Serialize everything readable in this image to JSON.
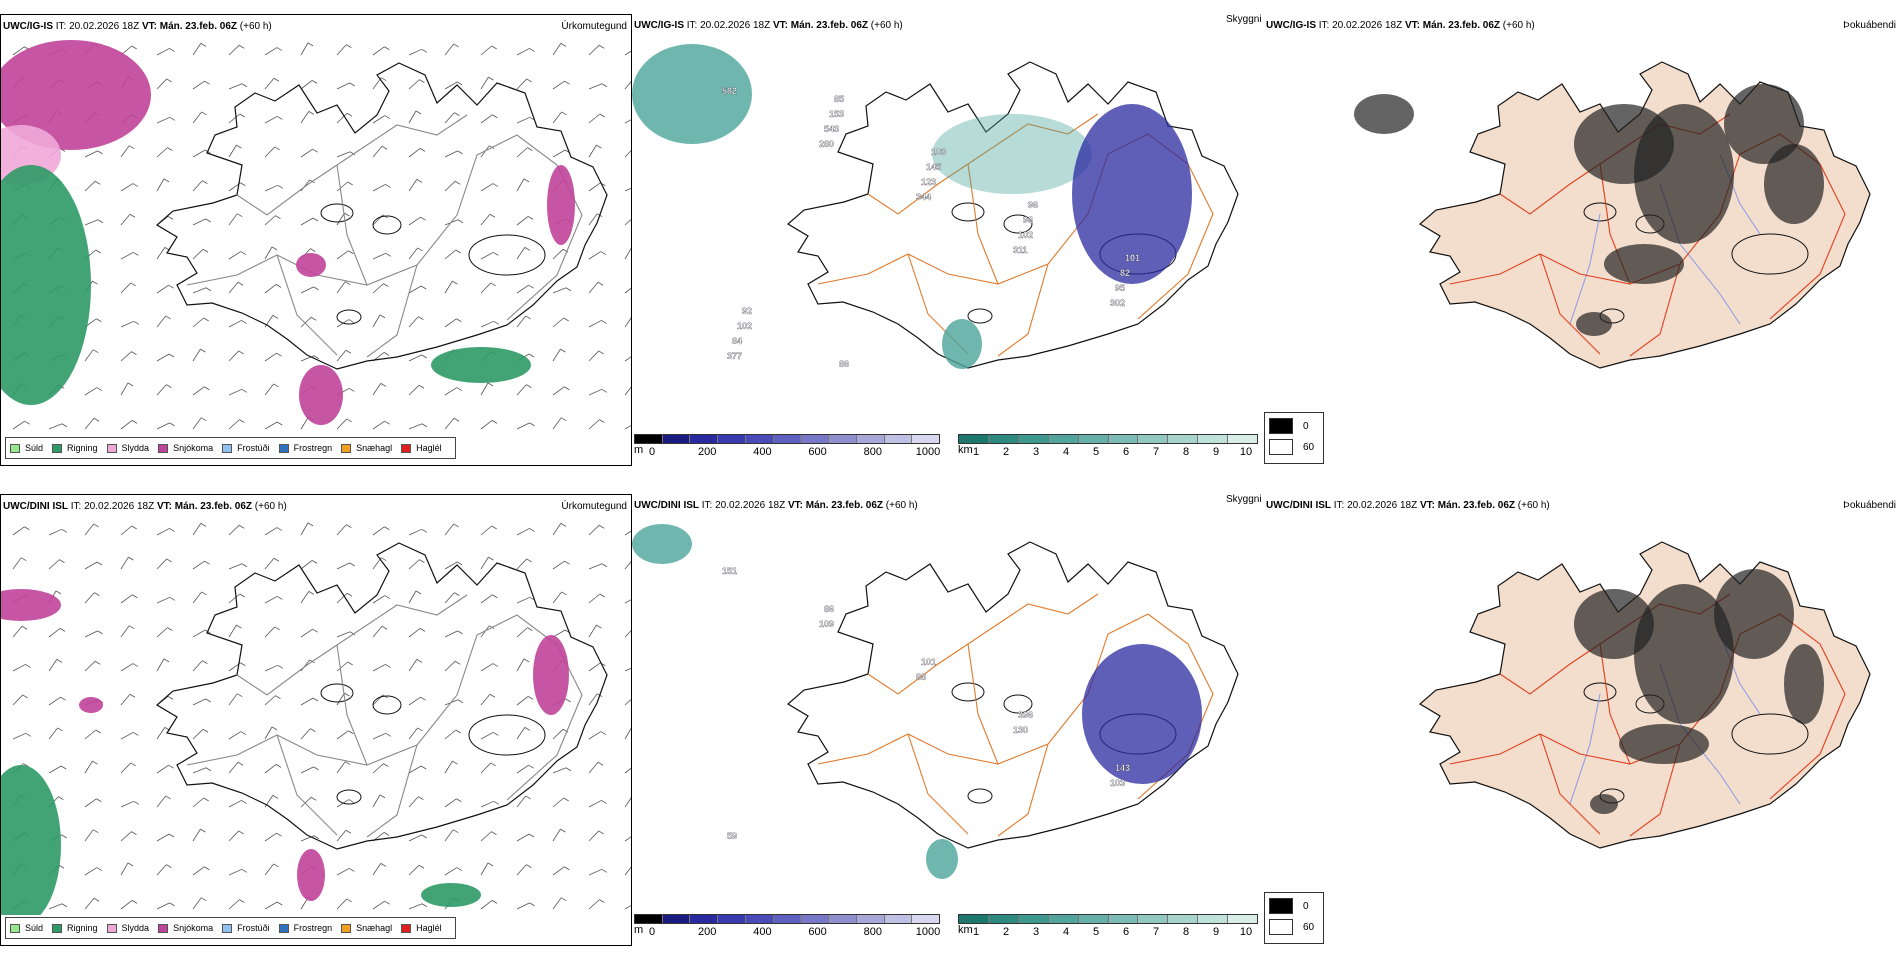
{
  "rows": [
    {
      "model": "UWC/IG-IS",
      "it_label": "IT:",
      "it_value": "20.02.2026 18Z",
      "vt_label": "VT:",
      "vt_value": "Mán. 23.feb. 06Z",
      "lead": "(+60 h)",
      "titles": {
        "precip_type": "Úrkomutegund",
        "cloud": "Skyggni",
        "fog": "Þokuábendi"
      }
    },
    {
      "model": "UWC/DINI ISL",
      "it_label": "IT:",
      "it_value": "20.02.2026 18Z",
      "vt_label": "VT:",
      "vt_value": "Mán. 23.feb. 06Z",
      "lead": "(+60 h)",
      "titles": {
        "precip_type": "Úrkomutegund",
        "cloud": "Skyggni",
        "fog": "Þokuábendi"
      }
    }
  ],
  "precip_legend": [
    {
      "label": "Súld",
      "color": "#98e890"
    },
    {
      "label": "Rigning",
      "color": "#2e9a66"
    },
    {
      "label": "Slydda",
      "color": "#f0a8d8"
    },
    {
      "label": "Snjókoma",
      "color": "#c0449a"
    },
    {
      "label": "Frostúði",
      "color": "#90c0f0"
    },
    {
      "label": "Frostregn",
      "color": "#3070c0"
    },
    {
      "label": "Snæhagl",
      "color": "#f0a020"
    },
    {
      "label": "Haglél",
      "color": "#e02020"
    }
  ],
  "cloud_base_scale": {
    "unit": "m",
    "ticks": [
      "0",
      "200",
      "400",
      "600",
      "800",
      "1000"
    ],
    "colors": [
      "#000000",
      "#1a1a80",
      "#2a2aa0",
      "#3a3ab0",
      "#4a4ab8",
      "#6060c0",
      "#7878c8",
      "#9090d0",
      "#a8a8d8",
      "#c0c0e4",
      "#d8d8f0"
    ]
  },
  "visibility_scale": {
    "unit": "km",
    "ticks": [
      "1",
      "2",
      "3",
      "4",
      "5",
      "6",
      "7",
      "8",
      "9",
      "10"
    ],
    "colors": [
      "#1e7870",
      "#2e8a80",
      "#3e9890",
      "#52a49c",
      "#66b0a8",
      "#7cbcb4",
      "#92c8c0",
      "#a8d4cc",
      "#c0e0da",
      "#d8ece8"
    ]
  },
  "fog_legend": [
    {
      "label": "0",
      "color": "#000000"
    },
    {
      "label": "60",
      "color": "#ffffff"
    }
  ],
  "cloud_labels": [
    [
      "582",
      "280",
      "344",
      "311",
      "302",
      "377",
      "543",
      "123",
      "102",
      "95",
      "84",
      "153",
      "145",
      "96",
      "82",
      "102",
      "85",
      "103",
      "96",
      "101",
      "92",
      "86"
    ],
    [
      "151",
      "109",
      "88",
      "130",
      "103",
      "59",
      "86",
      "101",
      "396",
      "143"
    ]
  ],
  "colors": {
    "coast": "#111111",
    "road": "#e07a2c",
    "road_red": "#e04020",
    "river": "#8a9ae8",
    "land_fill": "#f3ddcc",
    "rain": "#2e9a66",
    "snow": "#c0449a",
    "sleet": "#f0a8d8",
    "vis_teal": "#4aa49a",
    "cloud_blue": "#2a2aa0"
  }
}
